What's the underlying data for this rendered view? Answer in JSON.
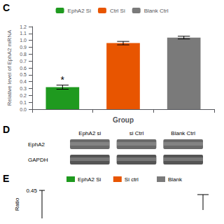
{
  "chart_data": [
    {
      "type": "bar",
      "title": "C",
      "xlabel": "Group",
      "ylabel": "Relative level of EphA2 mRNA",
      "categories": [
        "EphA2 Si",
        "Ctrl Si",
        "Blank Ctrl"
      ],
      "values": [
        0.32,
        0.96,
        1.04
      ],
      "errors": [
        0.03,
        0.025,
        0.02
      ],
      "colors": [
        "#1f9a1f",
        "#e85500",
        "#7a7a7a"
      ],
      "ylim": [
        0,
        1.2
      ],
      "yticks": [
        {
          "value": 0.0,
          "label": "0.0"
        },
        0.1,
        0.2,
        0.3,
        0.4,
        0.5,
        0.6,
        0.7,
        0.8,
        0.9,
        {
          "value": 1.0,
          "label": "1.0"
        },
        1.1,
        1.2
      ],
      "tick_labels": "y",
      "legend": "top",
      "grid": false,
      "annotations": [
        {
          "text": "*",
          "category": "EphA2 Si"
        }
      ]
    },
    {
      "type": "blot",
      "title": "D",
      "categories": [
        "EphA2 si",
        "si Ctrl",
        "Blank Ctrl"
      ],
      "rows": [
        "EphA2",
        "GAPDH"
      ],
      "colors": [
        "#6a6a6a",
        "#555555"
      ]
    },
    {
      "type": "legend",
      "title": "E",
      "ylabel": "Ratio",
      "yticks": [
        0.45
      ],
      "series": [
        {
          "name": "EphA2 Si",
          "color": "#1f9a1f"
        },
        {
          "name": "Si ctrl",
          "color": "#e85500"
        },
        {
          "name": "Blank",
          "color": "#7a7a7a"
        }
      ]
    }
  ]
}
